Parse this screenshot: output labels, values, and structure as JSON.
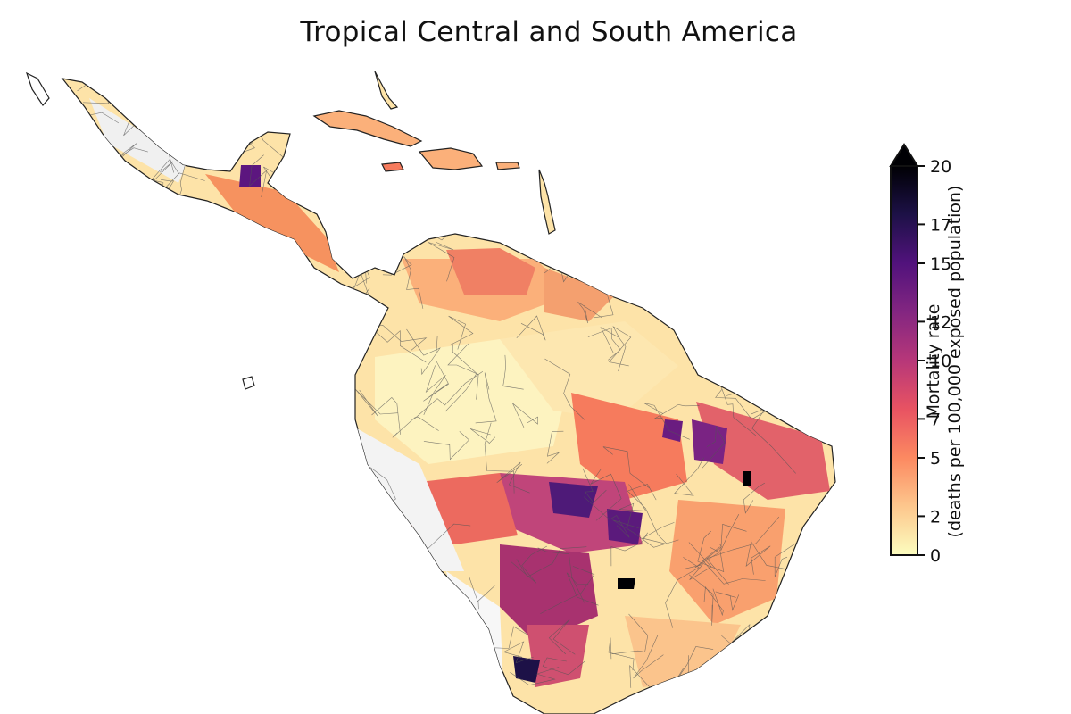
{
  "title": "Tropical Central and South America",
  "colorbar": {
    "label_line1": "Mortality rate",
    "label_line2": "(deaths per 100,000 exposed population)",
    "ticks": [
      "0",
      "2",
      "5",
      "7",
      "10",
      "12",
      "15",
      "17",
      "20"
    ],
    "min": 0,
    "max": 20,
    "extend": "max",
    "colormap": "magma_r",
    "stops": [
      "#fcfdbf",
      "#fdc78d",
      "#fc8961",
      "#e85362",
      "#b73779",
      "#832681",
      "#51127c",
      "#1d1147",
      "#000004"
    ]
  },
  "map": {
    "region": "Tropical Central and South America",
    "unmapped_color": "#ffffff",
    "border_color": "#555555"
  }
}
